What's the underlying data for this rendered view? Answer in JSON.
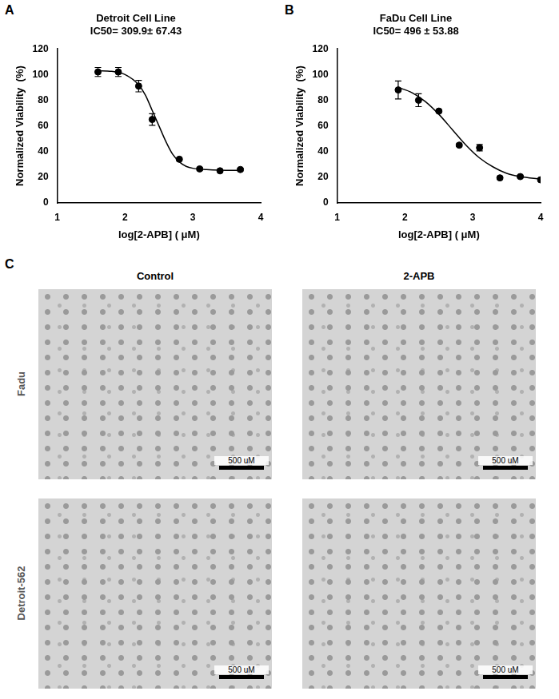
{
  "chart_data": [
    {
      "type": "scatter",
      "panel": "A",
      "title": [
        "Detroit Cell Line",
        "IC50= 309.9± 67.43"
      ],
      "x_label": "log[2-APB] ( μM)",
      "y_label": "Normalized Viability  (%)",
      "xlim": [
        1,
        4
      ],
      "xticks": [
        1,
        2,
        3,
        4
      ],
      "ylim": [
        0,
        120
      ],
      "yticks": [
        0,
        20,
        40,
        60,
        80,
        100,
        120
      ],
      "grid": false,
      "series": [
        {
          "type": "scatter",
          "marker": "circle",
          "color": "#000000",
          "x": [
            1.6,
            1.9,
            2.2,
            2.4,
            2.8,
            3.1,
            3.4,
            3.7
          ],
          "values": [
            102,
            102,
            91,
            65,
            34,
            26.5,
            25,
            26
          ],
          "errors": [
            3.5,
            3.5,
            4.5,
            4.5,
            1,
            1,
            1,
            1
          ]
        },
        {
          "type": "line",
          "line_style": "solid",
          "color": "#000000",
          "x": [
            1.6,
            1.8,
            2.0,
            2.2,
            2.3,
            2.4,
            2.5,
            2.6,
            2.7,
            2.8,
            2.9,
            3.0,
            3.2,
            3.4,
            3.7
          ],
          "values": [
            103,
            102.5,
            100,
            92,
            84,
            72,
            60,
            48,
            38,
            32,
            28.5,
            27,
            26,
            25.5,
            25.3
          ]
        }
      ]
    },
    {
      "type": "scatter",
      "panel": "B",
      "title": [
        "FaDu Cell Line",
        "IC50= 496 ± 53.88"
      ],
      "x_label": "log[2-APB] ( μM)",
      "y_label": "Normalized Viability  (%)",
      "xlim": [
        1,
        4
      ],
      "xticks": [
        1,
        2,
        3,
        4
      ],
      "ylim": [
        0,
        120
      ],
      "yticks": [
        0,
        20,
        40,
        60,
        80,
        100,
        120
      ],
      "grid": false,
      "series": [
        {
          "type": "scatter",
          "marker": "circle",
          "color": "#000000",
          "x": [
            1.9,
            2.2,
            2.5,
            2.8,
            3.1,
            3.4,
            3.7,
            4.0
          ],
          "values": [
            88,
            80,
            71.5,
            45,
            43,
            19.5,
            20.5,
            18
          ],
          "errors": [
            7,
            5,
            1,
            1,
            2.5,
            1,
            1,
            1
          ]
        },
        {
          "type": "line",
          "line_style": "solid",
          "color": "#000000",
          "x": [
            1.9,
            2.1,
            2.3,
            2.5,
            2.7,
            2.9,
            3.1,
            3.3,
            3.5,
            3.7,
            4.0
          ],
          "values": [
            90,
            86,
            79,
            69,
            57,
            45,
            35,
            28,
            23,
            20.5,
            18.5
          ]
        }
      ]
    }
  ],
  "panel_c": {
    "label": "C",
    "columns": [
      "Control",
      "2-APB"
    ],
    "rows": [
      "Fadu",
      "Detroit-562"
    ],
    "scale_bar": "500 uM"
  }
}
